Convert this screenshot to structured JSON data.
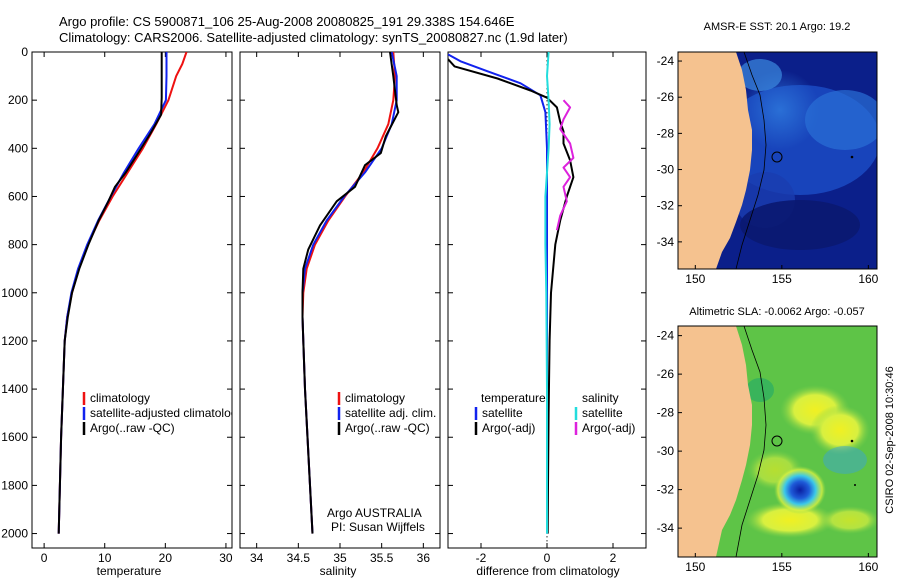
{
  "header": {
    "line1": "Argo profile: CS 5900871_106 25-Aug-2008 20080825_191 29.338S 154.646E",
    "line2": "Climatology: CARS2006. Satellite-adjusted climatology: synTS_20080827.nc (1.9d later)"
  },
  "credit": "CSIRO 02-Sep-2008 10:30:46",
  "colors": {
    "clim": "#ee1111",
    "sat": "#1122ee",
    "argo": "#000000",
    "sal_sat": "#22dddd",
    "sal_argo": "#dd22dd",
    "land": "#f5c28f"
  },
  "chart_data": [
    {
      "type": "line",
      "xlabel": "temperature",
      "xlim": [
        -2,
        31
      ],
      "ylim": [
        2060,
        0
      ],
      "xticks": [
        0,
        10,
        20,
        30
      ],
      "yticks": [
        0,
        200,
        400,
        600,
        800,
        1000,
        1200,
        1400,
        1600,
        1800,
        2000
      ],
      "legend": [
        "climatology",
        "satellite-adjusted climatology",
        "Argo(..raw -QC)"
      ],
      "series": [
        {
          "name": "climatology",
          "color": "#ee1111",
          "points": [
            [
              23.5,
              0
            ],
            [
              22.8,
              50
            ],
            [
              21.8,
              100
            ],
            [
              20.5,
              200
            ],
            [
              18.5,
              300
            ],
            [
              16.3,
              400
            ],
            [
              13.8,
              500
            ],
            [
              11.3,
              600
            ],
            [
              9.1,
              700
            ],
            [
              7.2,
              800
            ],
            [
              5.7,
              900
            ],
            [
              4.6,
              1000
            ],
            [
              3.8,
              1100
            ],
            [
              3.4,
              1200
            ],
            [
              3.1,
              1400
            ],
            [
              2.8,
              1600
            ],
            [
              2.6,
              1800
            ],
            [
              2.4,
              2000
            ]
          ]
        },
        {
          "name": "satellite-adjusted climatology",
          "color": "#1122ee",
          "points": [
            [
              20.2,
              0
            ],
            [
              20.2,
              100
            ],
            [
              20.1,
              200
            ],
            [
              18.2,
              300
            ],
            [
              15.6,
              400
            ],
            [
              13.2,
              500
            ],
            [
              11.0,
              600
            ],
            [
              8.9,
              700
            ],
            [
              7.1,
              800
            ],
            [
              5.6,
              900
            ],
            [
              4.5,
              1000
            ],
            [
              3.8,
              1100
            ],
            [
              3.4,
              1200
            ],
            [
              3.1,
              1400
            ],
            [
              2.8,
              1600
            ],
            [
              2.6,
              1800
            ],
            [
              2.4,
              2000
            ]
          ]
        },
        {
          "name": "Argo(..raw -QC)",
          "color": "#000000",
          "points": [
            [
              19.4,
              0
            ],
            [
              19.4,
              100
            ],
            [
              19.4,
              190
            ],
            [
              19.3,
              260
            ],
            [
              17.5,
              340
            ],
            [
              15.5,
              420
            ],
            [
              13.5,
              500
            ],
            [
              11.7,
              560
            ],
            [
              10.6,
              620
            ],
            [
              9.0,
              700
            ],
            [
              7.3,
              800
            ],
            [
              5.8,
              900
            ],
            [
              4.6,
              1000
            ],
            [
              3.9,
              1100
            ],
            [
              3.4,
              1200
            ],
            [
              3.1,
              1400
            ],
            [
              2.8,
              1600
            ],
            [
              2.6,
              1800
            ],
            [
              2.4,
              2000
            ]
          ]
        }
      ]
    },
    {
      "type": "line",
      "xlabel": "salinity",
      "xlim": [
        33.8,
        36.2
      ],
      "ylim": [
        2060,
        0
      ],
      "xticks": [
        34,
        34.5,
        35,
        35.5,
        36
      ],
      "legend": [
        "climatology",
        "satellite adj. clim.",
        "Argo(..raw -QC)"
      ],
      "annotation": [
        "Argo AUSTRALIA",
        "PI: Susan Wijffels"
      ],
      "series": [
        {
          "name": "climatology",
          "color": "#ee1111",
          "points": [
            [
              35.64,
              0
            ],
            [
              35.66,
              100
            ],
            [
              35.64,
              200
            ],
            [
              35.58,
              300
            ],
            [
              35.45,
              400
            ],
            [
              35.28,
              500
            ],
            [
              35.06,
              600
            ],
            [
              34.86,
              700
            ],
            [
              34.7,
              800
            ],
            [
              34.6,
              900
            ],
            [
              34.56,
              1000
            ],
            [
              34.55,
              1100
            ],
            [
              34.56,
              1200
            ],
            [
              34.58,
              1400
            ],
            [
              34.61,
              1600
            ],
            [
              34.64,
              1800
            ],
            [
              34.67,
              2000
            ]
          ]
        },
        {
          "name": "satellite adj. clim.",
          "color": "#1122ee",
          "points": [
            [
              35.62,
              0
            ],
            [
              35.68,
              100
            ],
            [
              35.68,
              200
            ],
            [
              35.62,
              300
            ],
            [
              35.5,
              400
            ],
            [
              35.3,
              500
            ],
            [
              35.05,
              600
            ],
            [
              34.84,
              700
            ],
            [
              34.68,
              800
            ],
            [
              34.58,
              900
            ],
            [
              34.55,
              1000
            ],
            [
              34.55,
              1100
            ],
            [
              34.56,
              1200
            ],
            [
              34.58,
              1400
            ],
            [
              34.61,
              1600
            ],
            [
              34.64,
              1800
            ],
            [
              34.67,
              2000
            ]
          ]
        },
        {
          "name": "Argo(..raw -QC)",
          "color": "#000000",
          "points": [
            [
              35.6,
              0
            ],
            [
              35.64,
              100
            ],
            [
              35.68,
              220
            ],
            [
              35.7,
              250
            ],
            [
              35.55,
              350
            ],
            [
              35.49,
              420
            ],
            [
              35.3,
              470
            ],
            [
              35.18,
              560
            ],
            [
              34.96,
              620
            ],
            [
              34.76,
              720
            ],
            [
              34.62,
              820
            ],
            [
              34.56,
              900
            ],
            [
              34.55,
              1000
            ],
            [
              34.55,
              1100
            ],
            [
              34.56,
              1200
            ],
            [
              34.58,
              1400
            ],
            [
              34.61,
              1600
            ],
            [
              34.64,
              1800
            ],
            [
              34.67,
              2000
            ]
          ]
        }
      ]
    },
    {
      "type": "line",
      "xlabel": "difference from climatology",
      "xlim": [
        -3,
        3
      ],
      "ylim": [
        2060,
        0
      ],
      "xticks": [
        -2,
        0,
        2
      ],
      "legend_left": {
        "heading": "temperature",
        "items": [
          "satellite",
          "Argo(-adj)"
        ]
      },
      "legend_right": {
        "heading": "salinity",
        "items": [
          "satellite",
          "Argo(-adj)"
        ]
      },
      "series": [
        {
          "name": "temperature satellite",
          "color": "#1122ee",
          "points": [
            [
              -3.0,
              10
            ],
            [
              -2.6,
              40
            ],
            [
              -1.8,
              80
            ],
            [
              -0.8,
              130
            ],
            [
              -0.2,
              180
            ],
            [
              -0.05,
              250
            ],
            [
              0.0,
              400
            ],
            [
              0.0,
              1000
            ],
            [
              0.0,
              2000
            ]
          ]
        },
        {
          "name": "temperature Argo(-adj)",
          "color": "#000000",
          "points": [
            [
              -3.0,
              30
            ],
            [
              -2.8,
              60
            ],
            [
              -1.5,
              110
            ],
            [
              -0.5,
              160
            ],
            [
              0.0,
              190
            ],
            [
              0.3,
              230
            ],
            [
              0.4,
              290
            ],
            [
              0.5,
              330
            ],
            [
              0.5,
              380
            ],
            [
              0.7,
              450
            ],
            [
              0.8,
              520
            ],
            [
              0.6,
              600
            ],
            [
              0.4,
              700
            ],
            [
              0.25,
              800
            ],
            [
              0.12,
              1000
            ],
            [
              0.08,
              1200
            ],
            [
              0.05,
              1500
            ],
            [
              0.03,
              1800
            ],
            [
              0.02,
              2000
            ]
          ]
        },
        {
          "name": "salinity satellite",
          "color": "#22dddd",
          "points": [
            [
              0.05,
              0
            ],
            [
              0.0,
              100
            ],
            [
              0.05,
              200
            ],
            [
              0.08,
              300
            ],
            [
              0.05,
              400
            ],
            [
              0.0,
              500
            ],
            [
              -0.05,
              600
            ],
            [
              -0.05,
              800
            ],
            [
              -0.02,
              1000
            ],
            [
              0.0,
              1400
            ],
            [
              0.0,
              2000
            ]
          ]
        },
        {
          "name": "salinity Argo(-adj)",
          "color": "#dd22dd",
          "points": [
            [
              0.5,
              200
            ],
            [
              0.7,
              230
            ],
            [
              0.5,
              280
            ],
            [
              0.4,
              320
            ],
            [
              0.7,
              380
            ],
            [
              0.8,
              440
            ],
            [
              0.5,
              480
            ],
            [
              0.7,
              520
            ],
            [
              0.5,
              560
            ],
            [
              0.6,
              620
            ],
            [
              0.4,
              680
            ],
            [
              0.3,
              740
            ]
          ]
        }
      ]
    },
    {
      "type": "heatmap",
      "title": "AMSR-E SST: 20.1 Argo: 19.2",
      "xlim": [
        149,
        160.5
      ],
      "ylim": [
        -35.5,
        -23.5
      ],
      "xticks": [
        150,
        155,
        160
      ],
      "yticks": [
        -24,
        -26,
        -28,
        -30,
        -32,
        -34
      ]
    },
    {
      "type": "heatmap",
      "title": "Altimetric SLA: -0.0062 Argo: -0.057",
      "xlim": [
        149,
        160.5
      ],
      "ylim": [
        -35.5,
        -23.5
      ],
      "xticks": [
        150,
        155,
        160
      ],
      "yticks": [
        -24,
        -26,
        -28,
        -30,
        -32,
        -34
      ]
    }
  ]
}
